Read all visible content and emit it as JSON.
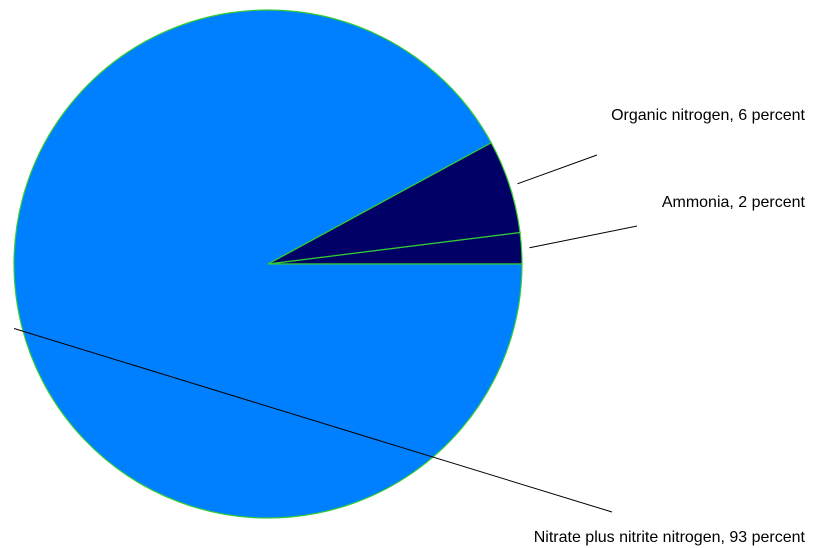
{
  "chart_data": {
    "type": "pie",
    "title": "",
    "slices": [
      {
        "label": "Nitrate plus nitrite nitrogen, 93 percent",
        "value": 93,
        "color": "#0080ff"
      },
      {
        "label": "Organic nitrogen, 6 percent",
        "value": 6,
        "color": "#000066"
      },
      {
        "label": "Ammonia, 2 percent",
        "value": 2,
        "color": "#000066"
      }
    ],
    "slice_border_color": "#33cc33",
    "leader_line_color": "#000000",
    "legend": "none"
  }
}
